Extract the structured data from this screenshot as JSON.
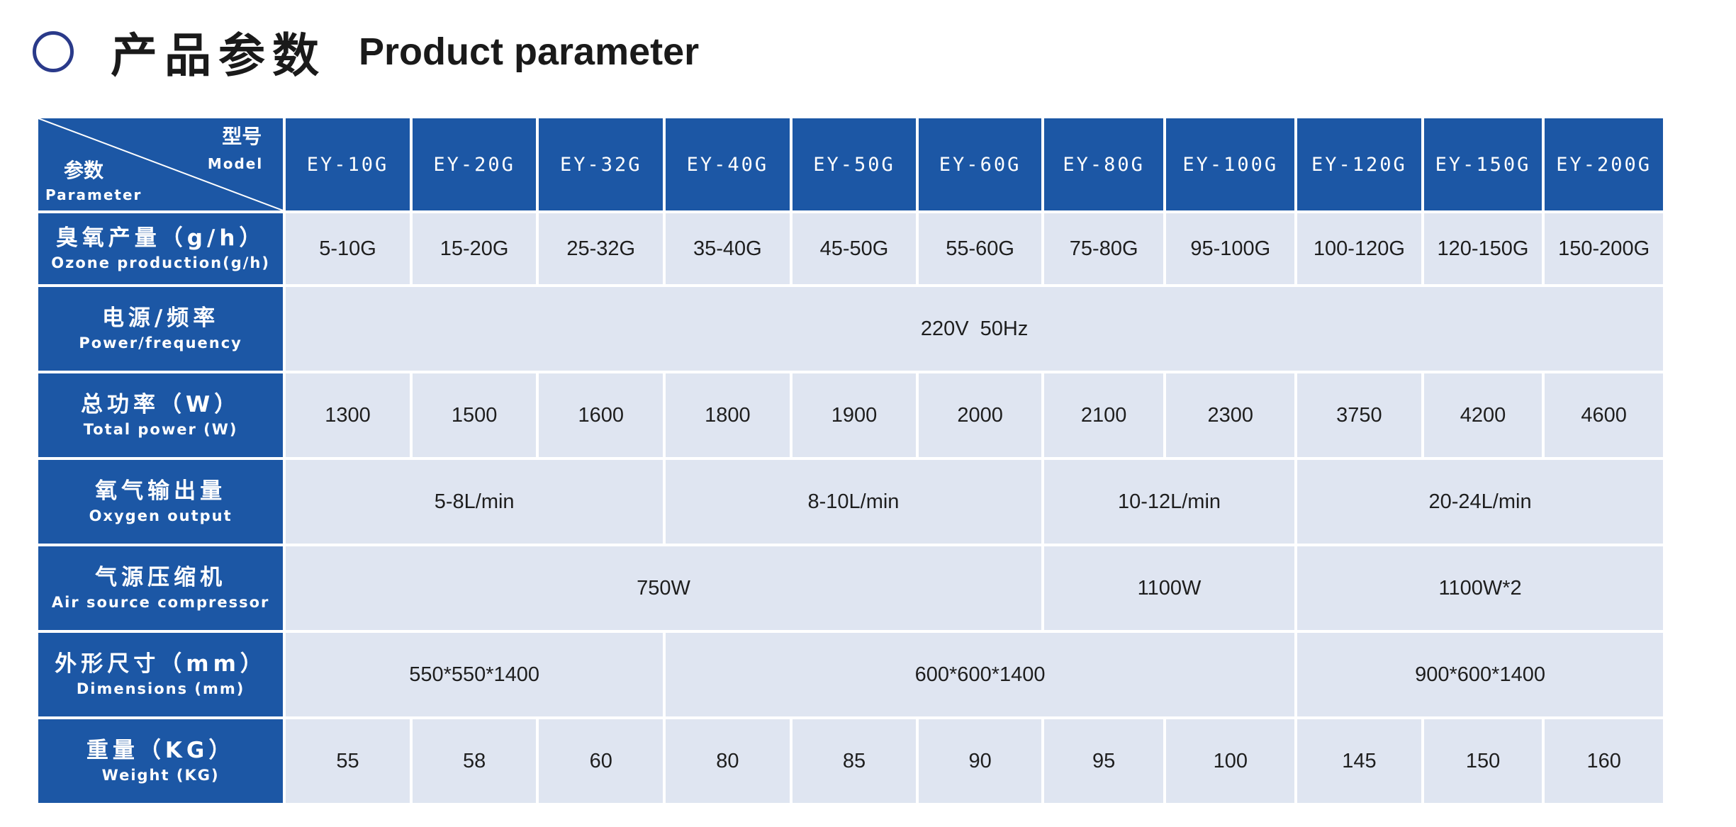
{
  "heading": {
    "title_cn": "产品参数",
    "title_en": "Product parameter"
  },
  "table": {
    "corner": {
      "model_cn": "型号",
      "model_en": "Model",
      "param_cn": "参数",
      "param_en": "Parameter"
    },
    "models": [
      "EY-10G",
      "EY-20G",
      "EY-32G",
      "EY-40G",
      "EY-50G",
      "EY-60G",
      "EY-80G",
      "EY-100G",
      "EY-120G",
      "EY-150G",
      "EY-200G"
    ],
    "rows": {
      "ozone": {
        "label_cn": "臭氧产量（g/h）",
        "label_en": "Ozone production(g/h)",
        "values": [
          "5-10G",
          "15-20G",
          "25-32G",
          "35-40G",
          "45-50G",
          "55-60G",
          "75-80G",
          "95-100G",
          "100-120G",
          "120-150G",
          "150-200G"
        ]
      },
      "power_freq": {
        "label_cn": "电源/频率",
        "label_en": "Power/frequency",
        "value": "220V  50Hz"
      },
      "total_power": {
        "label_cn": "总功率（W）",
        "label_en": "Total power (W)",
        "values": [
          "1300",
          "1500",
          "1600",
          "1800",
          "1900",
          "2000",
          "2100",
          "2300",
          "3750",
          "4200",
          "4600"
        ]
      },
      "oxygen": {
        "label_cn": "氧气输出量",
        "label_en": "Oxygen output",
        "groups": [
          "5-8L/min",
          "8-10L/min",
          "10-12L/min",
          "20-24L/min"
        ]
      },
      "compressor": {
        "label_cn": "气源压缩机",
        "label_en": "Air source compressor",
        "groups": [
          "750W",
          "1100W",
          "1100W*2"
        ]
      },
      "dimensions": {
        "label_cn": "外形尺寸（mm）",
        "label_en": "Dimensions (mm)",
        "groups": [
          "550*550*1400",
          "600*600*1400",
          "900*600*1400"
        ]
      },
      "weight": {
        "label_cn": "重量（KG）",
        "label_en": "Weight (KG)",
        "values": [
          "55",
          "58",
          "60",
          "80",
          "85",
          "90",
          "95",
          "100",
          "145",
          "150",
          "160"
        ]
      }
    }
  }
}
